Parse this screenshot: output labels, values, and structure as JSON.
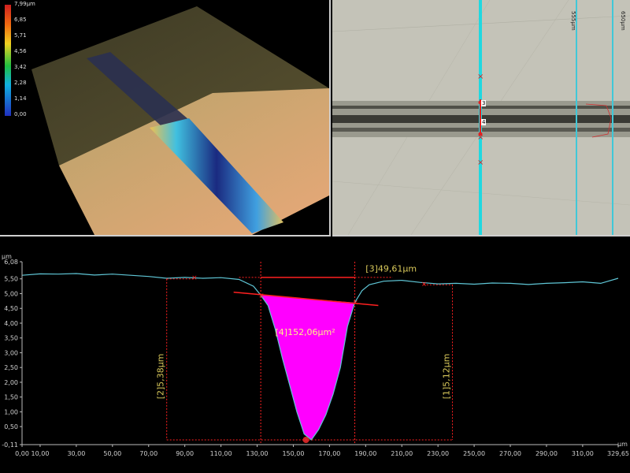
{
  "colorbar": {
    "labels": [
      "7,99µm",
      "6,85",
      "5,71",
      "4,56",
      "3,42",
      "2,28",
      "1,14",
      "0,00"
    ]
  },
  "micro": {
    "line_labels": [
      "555µm",
      "650µm"
    ],
    "marker_labels": [
      "3",
      "4"
    ]
  },
  "profile": {
    "y_unit": "µm",
    "x_unit": "µm",
    "y_ticks": [
      "6,08",
      "5,50",
      "5,00",
      "4,50",
      "4,00",
      "3,50",
      "3,00",
      "2,50",
      "2,00",
      "1,50",
      "1,00",
      "0,50",
      "-0,11"
    ],
    "x_ticks": [
      "0,00",
      "10,00",
      "30,00",
      "50,00",
      "70,00",
      "90,00",
      "110,00",
      "130,00",
      "150,00",
      "170,00",
      "190,00",
      "210,00",
      "230,00",
      "250,00",
      "270,00",
      "290,00",
      "310,00",
      "329,65"
    ],
    "annotations": {
      "width": "[3]49,61µm",
      "area": "[4]152,06µm²",
      "depth_left": "[2]5,38µm",
      "depth_right": "[1]5,12µm"
    }
  },
  "chart_data": {
    "type": "line",
    "xlabel": "µm",
    "ylabel": "µm",
    "xlim": [
      0,
      329.65
    ],
    "ylim": [
      -0.11,
      6.08
    ],
    "series": [
      {
        "x": [
          0,
          10,
          20,
          30,
          40,
          50,
          60,
          70,
          80,
          90,
          100,
          110,
          120,
          128,
          132,
          136,
          140,
          144,
          148,
          152,
          156,
          160,
          164,
          168,
          172,
          176,
          180,
          184,
          188,
          192,
          200,
          210,
          220,
          230,
          240,
          250,
          260,
          270,
          280,
          290,
          300,
          310,
          320,
          329.65
        ],
        "y": [
          5.62,
          5.67,
          5.66,
          5.68,
          5.63,
          5.66,
          5.62,
          5.58,
          5.52,
          5.55,
          5.52,
          5.54,
          5.48,
          5.25,
          4.95,
          4.6,
          3.8,
          2.8,
          1.9,
          1.0,
          0.25,
          0.05,
          0.4,
          0.9,
          1.6,
          2.5,
          3.9,
          4.7,
          5.1,
          5.3,
          5.42,
          5.45,
          5.38,
          5.33,
          5.35,
          5.32,
          5.36,
          5.35,
          5.31,
          5.35,
          5.37,
          5.4,
          5.35,
          5.52
        ]
      }
    ]
  }
}
